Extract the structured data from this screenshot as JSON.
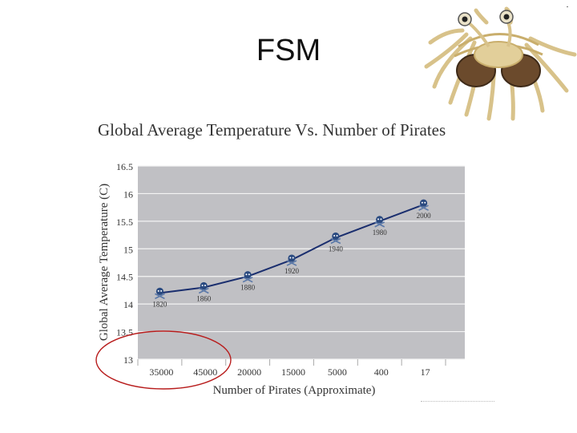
{
  "slide": {
    "title": "FSM"
  },
  "mascot": {
    "icon": "flying-spaghetti-monster-icon"
  },
  "colors": {
    "plot_bg": "#c0c0c4",
    "line": "#1a2e6e",
    "circle": "#b81d1d",
    "text": "#333333"
  },
  "chart_data": {
    "type": "line",
    "title": "Global Average Temperature Vs. Number of Pirates",
    "xlabel": "Number of Pirates (Approximate)",
    "ylabel": "Global Average Temperature (C)",
    "categories": [
      "35000",
      "45000",
      "20000",
      "15000",
      "5000",
      "400",
      "17"
    ],
    "ytick_labels": [
      "13",
      "13.5",
      "14",
      "14.5",
      "15",
      "15.5",
      "16",
      "16.5"
    ],
    "ylim": [
      13,
      16.5
    ],
    "grid": true,
    "points": [
      {
        "x": "35000",
        "y": 14.2,
        "year": "1820"
      },
      {
        "x": "45000",
        "y": 14.3,
        "year": "1860"
      },
      {
        "x": "20000",
        "y": 14.5,
        "year": "1880"
      },
      {
        "x": "15000",
        "y": 14.8,
        "year": "1920"
      },
      {
        "x": "5000",
        "y": 15.2,
        "year": "1940"
      },
      {
        "x": "400",
        "y": 15.5,
        "year": "1980"
      },
      {
        "x": "17",
        "y": 15.8,
        "year": "2000"
      }
    ],
    "annotation": "red circle around the first two x-axis categories (35000, 45000)"
  }
}
